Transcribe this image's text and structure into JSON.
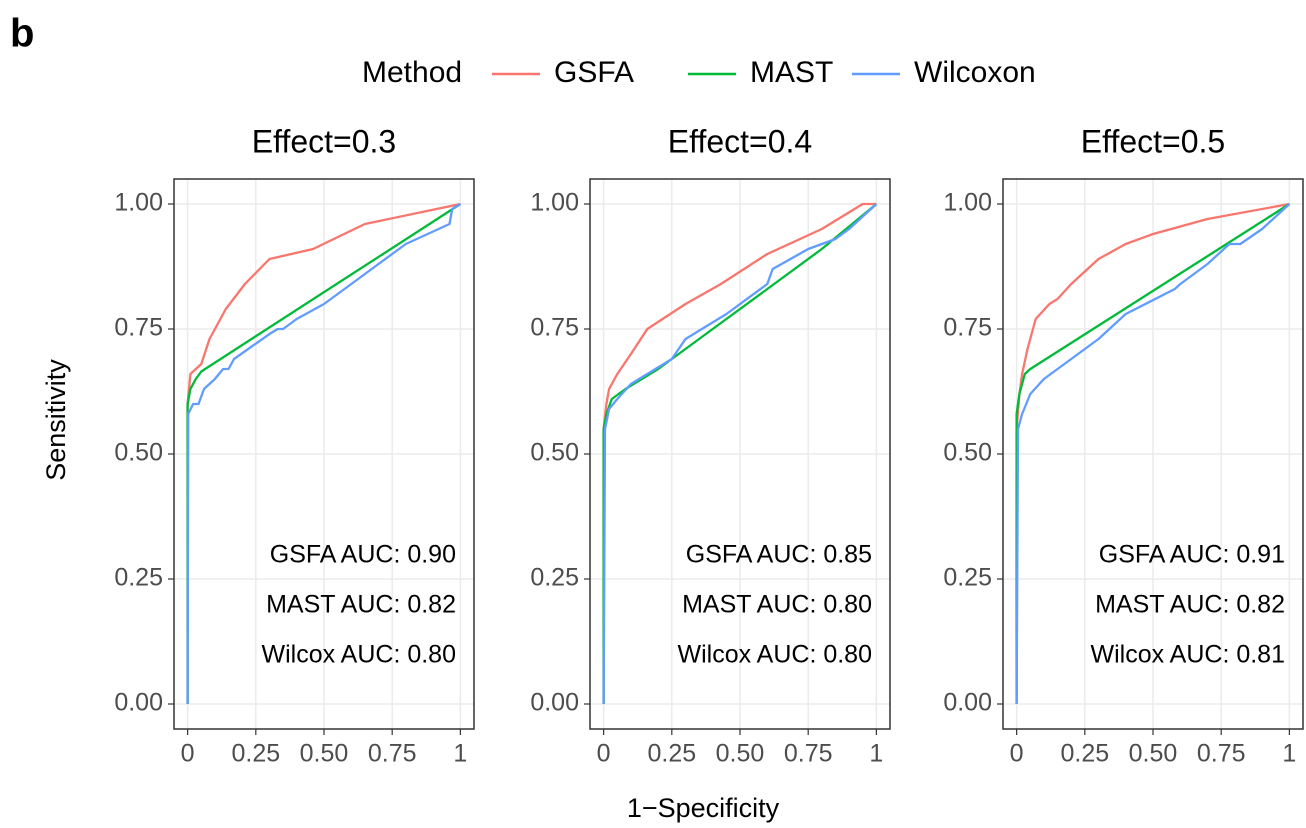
{
  "panel_label": "b",
  "legend_title": "Method",
  "xlabel": "1−Specificity",
  "ylabel": "Sensitivity",
  "chart_data": [
    {
      "type": "line",
      "title": "Effect=0.3",
      "grid": true,
      "xlim": [
        -0.05,
        1.05
      ],
      "ylim": [
        -0.05,
        1.05
      ],
      "xticks": [
        0,
        0.25,
        {
          "value": 0.5,
          "label": "0.50"
        },
        0.75,
        1
      ],
      "yticks": [
        {
          "value": 0,
          "label": "0.00"
        },
        0.25,
        {
          "value": 0.5,
          "label": "0.50"
        },
        0.75,
        {
          "value": 1,
          "label": "1.00"
        }
      ],
      "annotations": [
        "GSFA AUC: 0.90",
        "MAST AUC: 0.82",
        "Wilcox AUC: 0.80"
      ],
      "series": [
        {
          "name": "GSFA",
          "color": "#F8766D",
          "x": [
            0,
            0,
            0.01,
            0.05,
            0.08,
            0.14,
            0.21,
            0.3,
            0.46,
            0.65,
            1
          ],
          "values": [
            0,
            0.6,
            0.66,
            0.68,
            0.73,
            0.79,
            0.84,
            0.89,
            0.91,
            0.96,
            1
          ]
        },
        {
          "name": "MAST",
          "color": "#00BA38",
          "x": [
            0,
            0,
            0.01,
            0.03,
            0.05,
            1
          ],
          "values": [
            0,
            0.6,
            0.63,
            0.65,
            0.665,
            1
          ]
        },
        {
          "name": "Wilcoxon",
          "color": "#619CFF",
          "x": [
            0,
            0.002,
            0.02,
            0.04,
            0.06,
            0.1,
            0.13,
            0.15,
            0.17,
            0.3,
            0.33,
            0.35,
            0.4,
            0.5,
            0.6,
            0.7,
            0.8,
            0.96,
            0.97,
            1
          ],
          "values": [
            0,
            0.58,
            0.6,
            0.6,
            0.63,
            0.65,
            0.67,
            0.67,
            0.69,
            0.74,
            0.75,
            0.75,
            0.77,
            0.8,
            0.84,
            0.88,
            0.92,
            0.96,
            0.99,
            1
          ]
        }
      ]
    },
    {
      "type": "line",
      "title": "Effect=0.4",
      "grid": true,
      "xlim": [
        -0.05,
        1.05
      ],
      "ylim": [
        -0.05,
        1.05
      ],
      "xticks": [
        0,
        0.25,
        {
          "value": 0.5,
          "label": "0.50"
        },
        0.75,
        1
      ],
      "yticks": [
        {
          "value": 0,
          "label": "0.00"
        },
        0.25,
        {
          "value": 0.5,
          "label": "0.50"
        },
        0.75,
        {
          "value": 1,
          "label": "1.00"
        }
      ],
      "annotations": [
        "GSFA AUC: 0.85",
        "MAST AUC: 0.80",
        "Wilcox AUC: 0.80"
      ],
      "series": [
        {
          "name": "GSFA",
          "color": "#F8766D",
          "x": [
            0,
            0,
            0.01,
            0.02,
            0.05,
            0.1,
            0.16,
            0.3,
            0.43,
            0.6,
            0.8,
            0.95,
            1
          ],
          "values": [
            0,
            0.55,
            0.6,
            0.63,
            0.66,
            0.7,
            0.75,
            0.8,
            0.84,
            0.9,
            0.95,
            1,
            1
          ]
        },
        {
          "name": "MAST",
          "color": "#00BA38",
          "x": [
            0,
            0,
            0.01,
            0.03,
            0.08,
            0.2,
            0.4,
            0.6,
            0.8,
            1
          ],
          "values": [
            0,
            0.55,
            0.58,
            0.61,
            0.63,
            0.67,
            0.75,
            0.83,
            0.91,
            1
          ]
        },
        {
          "name": "Wilcoxon",
          "color": "#619CFF",
          "x": [
            0,
            0.005,
            0.02,
            0.05,
            0.1,
            0.25,
            0.3,
            0.45,
            0.6,
            0.62,
            0.75,
            0.85,
            0.9,
            1
          ],
          "values": [
            0,
            0.55,
            0.59,
            0.61,
            0.64,
            0.69,
            0.73,
            0.78,
            0.84,
            0.87,
            0.91,
            0.93,
            0.95,
            1
          ]
        }
      ]
    },
    {
      "type": "line",
      "title": "Effect=0.5",
      "grid": true,
      "xlim": [
        -0.05,
        1.05
      ],
      "ylim": [
        -0.05,
        1.05
      ],
      "xticks": [
        0,
        0.25,
        {
          "value": 0.5,
          "label": "0.50"
        },
        0.75,
        1
      ],
      "yticks": [
        {
          "value": 0,
          "label": "0.00"
        },
        0.25,
        {
          "value": 0.5,
          "label": "0.50"
        },
        0.75,
        {
          "value": 1,
          "label": "1.00"
        }
      ],
      "annotations": [
        "GSFA AUC: 0.91",
        "MAST AUC: 0.82",
        "Wilcox AUC: 0.81"
      ],
      "series": [
        {
          "name": "GSFA",
          "color": "#F8766D",
          "x": [
            0,
            0,
            0.01,
            0.02,
            0.04,
            0.07,
            0.12,
            0.15,
            0.2,
            0.3,
            0.4,
            0.5,
            0.7,
            1
          ],
          "values": [
            0,
            0.55,
            0.62,
            0.66,
            0.71,
            0.77,
            0.8,
            0.81,
            0.84,
            0.89,
            0.92,
            0.94,
            0.97,
            1
          ]
        },
        {
          "name": "MAST",
          "color": "#00BA38",
          "x": [
            0,
            0,
            0.01,
            0.03,
            0.05,
            1
          ],
          "values": [
            0,
            0.58,
            0.62,
            0.66,
            0.67,
            1
          ]
        },
        {
          "name": "Wilcoxon",
          "color": "#619CFF",
          "x": [
            0,
            0.005,
            0.02,
            0.05,
            0.1,
            0.2,
            0.3,
            0.4,
            0.58,
            0.6,
            0.7,
            0.78,
            0.82,
            0.9,
            1
          ],
          "values": [
            0,
            0.55,
            0.58,
            0.62,
            0.65,
            0.69,
            0.73,
            0.78,
            0.83,
            0.84,
            0.88,
            0.92,
            0.92,
            0.95,
            1
          ]
        }
      ]
    }
  ]
}
